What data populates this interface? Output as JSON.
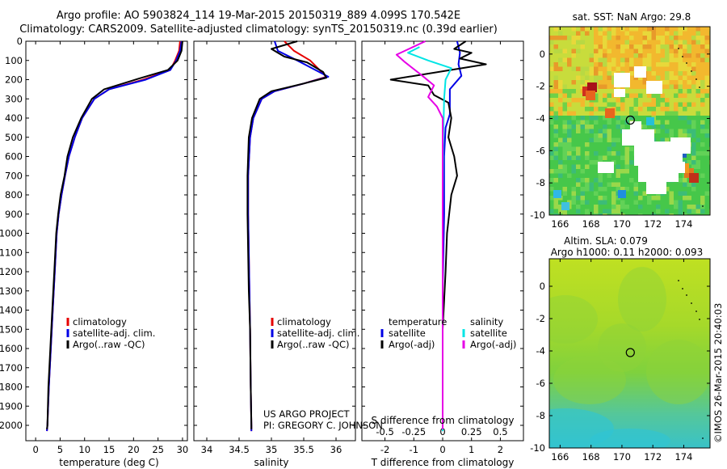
{
  "header": {
    "title_line1": "Argo profile: AO 5903824_114 19-Mar-2015 20150319_889 4.099S 170.542E",
    "title_line2": "Climatology: CARS2009. Satellite-adjusted climatology: synTS_20150319.nc (0.39d earlier)"
  },
  "project": {
    "line1": "US ARGO PROJECT",
    "line2": "PI: GREGORY C. JOHNSON"
  },
  "stamp": "©IMOS 26-Mar-2015 20:40:03",
  "colors": {
    "climatology": "#e60000",
    "satellite": "#0000e6",
    "argo": "#000000",
    "cyan": "#00e5e5",
    "magenta": "#e600e6"
  },
  "chart_data": [
    {
      "type": "line",
      "xlabel": "temperature (deg C)",
      "xlim": [
        -2,
        31
      ],
      "ylim": [
        2080,
        0
      ],
      "xticks": [
        "0",
        "5",
        "10",
        "15",
        "20",
        "25",
        "30"
      ],
      "yticks": [
        "0",
        "100",
        "200",
        "300",
        "400",
        "500",
        "600",
        "700",
        "800",
        "900",
        "1000",
        "1100",
        "1200",
        "1300",
        "1400",
        "1500",
        "1600",
        "1700",
        "1800",
        "1900",
        "2000"
      ],
      "legend": [
        "climatology",
        "satellite-adj. clim.",
        "Argo(..raw -QC)"
      ],
      "series": [
        {
          "name": "climatology",
          "color": "#e60000",
          "points": [
            [
              29.5,
              0
            ],
            [
              29.3,
              50
            ],
            [
              28.5,
              100
            ],
            [
              27.5,
              150
            ],
            [
              22,
              200
            ],
            [
              15,
              250
            ],
            [
              12,
              300
            ],
            [
              9.5,
              400
            ],
            [
              8,
              500
            ],
            [
              6.8,
              600
            ],
            [
              6,
              700
            ],
            [
              5.3,
              800
            ],
            [
              4.7,
              900
            ],
            [
              4.3,
              1000
            ],
            [
              3.9,
              1200
            ],
            [
              3.5,
              1400
            ],
            [
              3.1,
              1600
            ],
            [
              2.7,
              1800
            ],
            [
              2.4,
              2000
            ],
            [
              2.3,
              2030
            ]
          ]
        },
        {
          "name": "satellite-adj. clim.",
          "color": "#0000e6",
          "points": [
            [
              29.8,
              0
            ],
            [
              29.5,
              50
            ],
            [
              28.7,
              100
            ],
            [
              27.5,
              150
            ],
            [
              22.5,
              200
            ],
            [
              15,
              250
            ],
            [
              12,
              300
            ],
            [
              9.5,
              400
            ],
            [
              8,
              500
            ],
            [
              6.8,
              600
            ],
            [
              6,
              700
            ],
            [
              5.3,
              800
            ],
            [
              4.7,
              900
            ],
            [
              4.3,
              1000
            ],
            [
              3.9,
              1200
            ],
            [
              3.5,
              1400
            ],
            [
              3.1,
              1600
            ],
            [
              2.7,
              1800
            ],
            [
              2.4,
              2000
            ],
            [
              2.3,
              2030
            ]
          ]
        },
        {
          "name": "Argo(..raw -QC)",
          "color": "#000000",
          "points": [
            [
              30,
              0
            ],
            [
              29.8,
              50
            ],
            [
              29,
              100
            ],
            [
              27,
              150
            ],
            [
              21,
              195
            ],
            [
              14,
              250
            ],
            [
              11.5,
              300
            ],
            [
              9.3,
              400
            ],
            [
              7.6,
              500
            ],
            [
              6.5,
              600
            ],
            [
              5.9,
              700
            ],
            [
              5.1,
              800
            ],
            [
              4.6,
              900
            ],
            [
              4.2,
              1000
            ],
            [
              3.8,
              1200
            ],
            [
              3.4,
              1400
            ],
            [
              3,
              1600
            ],
            [
              2.6,
              1800
            ],
            [
              2.4,
              2000
            ],
            [
              2.3,
              2020
            ]
          ]
        }
      ]
    },
    {
      "type": "line",
      "xlabel": "salinity",
      "xlim": [
        33.8,
        36.3
      ],
      "ylim": [
        2080,
        0
      ],
      "xticks": [
        "34",
        "34.5",
        "35",
        "35.5",
        "36"
      ],
      "legend": [
        "climatology",
        "satellite-adj. clim.",
        "Argo(..raw -QC)"
      ],
      "series": [
        {
          "name": "climatology",
          "color": "#e60000",
          "points": [
            [
              35.2,
              0
            ],
            [
              35.35,
              50
            ],
            [
              35.6,
              100
            ],
            [
              35.85,
              185
            ],
            [
              35.5,
              220
            ],
            [
              35.05,
              260
            ],
            [
              34.85,
              300
            ],
            [
              34.72,
              400
            ],
            [
              34.67,
              500
            ],
            [
              34.64,
              700
            ],
            [
              34.64,
              900
            ],
            [
              34.65,
              1100
            ],
            [
              34.66,
              1300
            ],
            [
              34.67,
              1500
            ],
            [
              34.68,
              1800
            ],
            [
              34.69,
              2000
            ],
            [
              34.69,
              2030
            ]
          ]
        },
        {
          "name": "satellite-adj. clim.",
          "color": "#0000e6",
          "points": [
            [
              35.05,
              0
            ],
            [
              35.1,
              50
            ],
            [
              35.4,
              100
            ],
            [
              35.88,
              185
            ],
            [
              35.5,
              220
            ],
            [
              35.05,
              260
            ],
            [
              34.85,
              300
            ],
            [
              34.72,
              400
            ],
            [
              34.67,
              500
            ],
            [
              34.64,
              700
            ],
            [
              34.64,
              900
            ],
            [
              34.65,
              1100
            ],
            [
              34.66,
              1300
            ],
            [
              34.67,
              1500
            ],
            [
              34.68,
              1800
            ],
            [
              34.69,
              2000
            ],
            [
              34.69,
              2030
            ]
          ]
        },
        {
          "name": "Argo(..raw -QC)",
          "color": "#000000",
          "points": [
            [
              35.4,
              0
            ],
            [
              35.0,
              40
            ],
            [
              35.2,
              80
            ],
            [
              35.55,
              110
            ],
            [
              35.8,
              160
            ],
            [
              35.85,
              190
            ],
            [
              35.5,
              220
            ],
            [
              35.0,
              260
            ],
            [
              34.82,
              300
            ],
            [
              34.7,
              400
            ],
            [
              34.65,
              500
            ],
            [
              34.63,
              700
            ],
            [
              34.63,
              900
            ],
            [
              34.64,
              1100
            ],
            [
              34.65,
              1300
            ],
            [
              34.67,
              1500
            ],
            [
              34.68,
              1800
            ],
            [
              34.69,
              2000
            ],
            [
              34.69,
              2020
            ]
          ]
        }
      ]
    },
    {
      "type": "line",
      "xlabel": "T difference from climatology",
      "xlabel_top": "S difference from climatology",
      "xlim": [
        -2.8,
        2.8
      ],
      "ylim": [
        2080,
        0
      ],
      "xticks": [
        "-2",
        "-1",
        "0",
        "1",
        "2"
      ],
      "xticks_top": [
        "-0.5",
        "-0.25",
        "0",
        "0.25",
        "0.5"
      ],
      "legend_left_title": "temperature",
      "legend_right_title": "salinity",
      "legend_left": [
        "satellite",
        "Argo(-adj)"
      ],
      "legend_right": [
        "satellite",
        "Argo(-adj)"
      ],
      "series": [
        {
          "name": "T satellite",
          "color": "#0000e6",
          "points": [
            [
              0.5,
              0
            ],
            [
              0.6,
              60
            ],
            [
              0.55,
              120
            ],
            [
              0.65,
              180
            ],
            [
              0.25,
              250
            ],
            [
              0.25,
              300
            ],
            [
              0.25,
              380
            ],
            [
              0.1,
              450
            ],
            [
              0.05,
              600
            ],
            [
              0.05,
              900
            ],
            [
              0,
              1300
            ],
            [
              0,
              1600
            ],
            [
              0,
              2030
            ]
          ]
        },
        {
          "name": "T Argo(-adj)",
          "color": "#000000",
          "points": [
            [
              0.8,
              0
            ],
            [
              0.4,
              40
            ],
            [
              1.0,
              60
            ],
            [
              0.6,
              90
            ],
            [
              1.5,
              120
            ],
            [
              -1.8,
              200
            ],
            [
              -0.5,
              230
            ],
            [
              -0.3,
              280
            ],
            [
              0.2,
              320
            ],
            [
              0.3,
              400
            ],
            [
              0.2,
              500
            ],
            [
              0.4,
              600
            ],
            [
              0.5,
              700
            ],
            [
              0.3,
              800
            ],
            [
              0.15,
              1000
            ],
            [
              0.1,
              1200
            ],
            [
              0,
              1500
            ],
            [
              0,
              2020
            ]
          ]
        },
        {
          "name": "S satellite",
          "color": "#00e5e5",
          "points": [
            [
              -0.8,
              30
            ],
            [
              -1.2,
              60
            ],
            [
              -0.5,
              100
            ],
            [
              0.3,
              140
            ],
            [
              0.1,
              200
            ],
            [
              0.05,
              300
            ],
            [
              0.02,
              500
            ],
            [
              0,
              900
            ],
            [
              0,
              1300
            ],
            [
              0,
              2030
            ]
          ]
        },
        {
          "name": "S Argo(-adj)",
          "color": "#e600e6",
          "points": [
            [
              -0.6,
              0
            ],
            [
              -1.6,
              70
            ],
            [
              -1.3,
              110
            ],
            [
              -0.7,
              180
            ],
            [
              -0.3,
              230
            ],
            [
              -0.5,
              290
            ],
            [
              -0.2,
              340
            ],
            [
              0,
              400
            ],
            [
              0,
              600
            ],
            [
              0,
              900
            ],
            [
              0,
              2020
            ]
          ]
        }
      ]
    },
    {
      "type": "heatmap",
      "title": "sat. SST: NaN Argo: 29.8",
      "xlim": [
        165.3,
        175.7
      ],
      "ylim": [
        -10,
        1.7
      ],
      "xticks": [
        "166",
        "168",
        "170",
        "172",
        "174"
      ],
      "yticks": [
        "0",
        "-2",
        "-4",
        "-6",
        "-8",
        "-10"
      ],
      "marker": {
        "lon": 170.542,
        "lat": -4.099
      }
    },
    {
      "type": "heatmap",
      "title": "Altim. SLA: 0.079",
      "subtitle": "Argo h1000: 0.11 h2000: 0.093",
      "xlim": [
        165.3,
        175.7
      ],
      "ylim": [
        -10,
        1.7
      ],
      "xticks": [
        "166",
        "168",
        "170",
        "172",
        "174"
      ],
      "yticks": [
        "0",
        "-2",
        "-4",
        "-6",
        "-8",
        "-10"
      ],
      "marker": {
        "lon": 170.542,
        "lat": -4.099
      }
    }
  ]
}
